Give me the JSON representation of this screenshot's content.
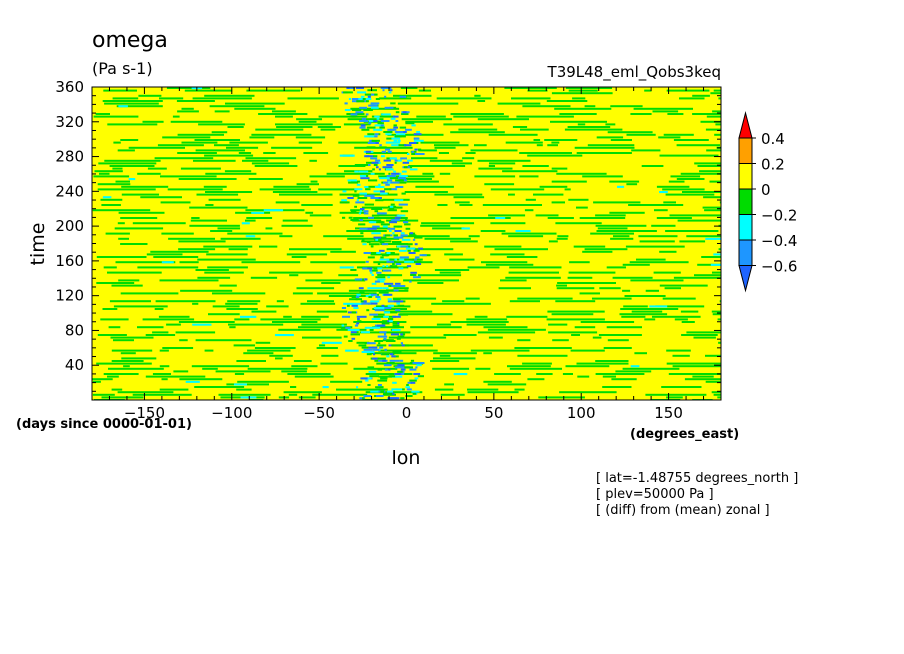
{
  "chart_data": {
    "type": "heatmap",
    "title": "omega",
    "units": "(Pa s-1)",
    "experiment": "T39L48_eml_Qobs3keq",
    "xlabel": "lon",
    "xunits": "(degrees_east)",
    "ylabel": "time",
    "yunits": "(days since 0000-01-01)",
    "xlim": [
      -180,
      180
    ],
    "ylim": [
      0,
      360
    ],
    "x_ticks": [
      -150,
      -100,
      -50,
      0,
      50,
      100,
      150
    ],
    "y_ticks": [
      40,
      80,
      120,
      160,
      200,
      240,
      280,
      320,
      360
    ],
    "colorbar": {
      "levels": [
        -0.6,
        -0.4,
        -0.2,
        0,
        0.2,
        0.4
      ],
      "tick_labels": [
        "0.4",
        "0.2",
        "0",
        "-0.2",
        "-0.4",
        "-0.6"
      ],
      "colors": {
        "below_-0.6": "#1e64ff",
        "-0.6_to_-0.4": "#1e96ff",
        "-0.4_to_-0.2": "#00ffff",
        "-0.2_to_0": "#00dc00",
        "0_to_0.2": "#ffff00",
        "0.2_to_0.4": "#ffa000",
        "above_0.4": "#ff0000"
      }
    },
    "field_description": "Predominantly 0 to 0.2 (yellow) with fragmented -0.2 to 0 (green) streaks; strongest negative values (to below -0.6) concentrated in a narrow band near lon -30 to 0 throughout all times.",
    "notes": [
      "[ lat=-1.48755 degrees_north ]",
      "[ plev=50000 Pa ]",
      "[ (diff) from (mean) zonal ]"
    ]
  }
}
